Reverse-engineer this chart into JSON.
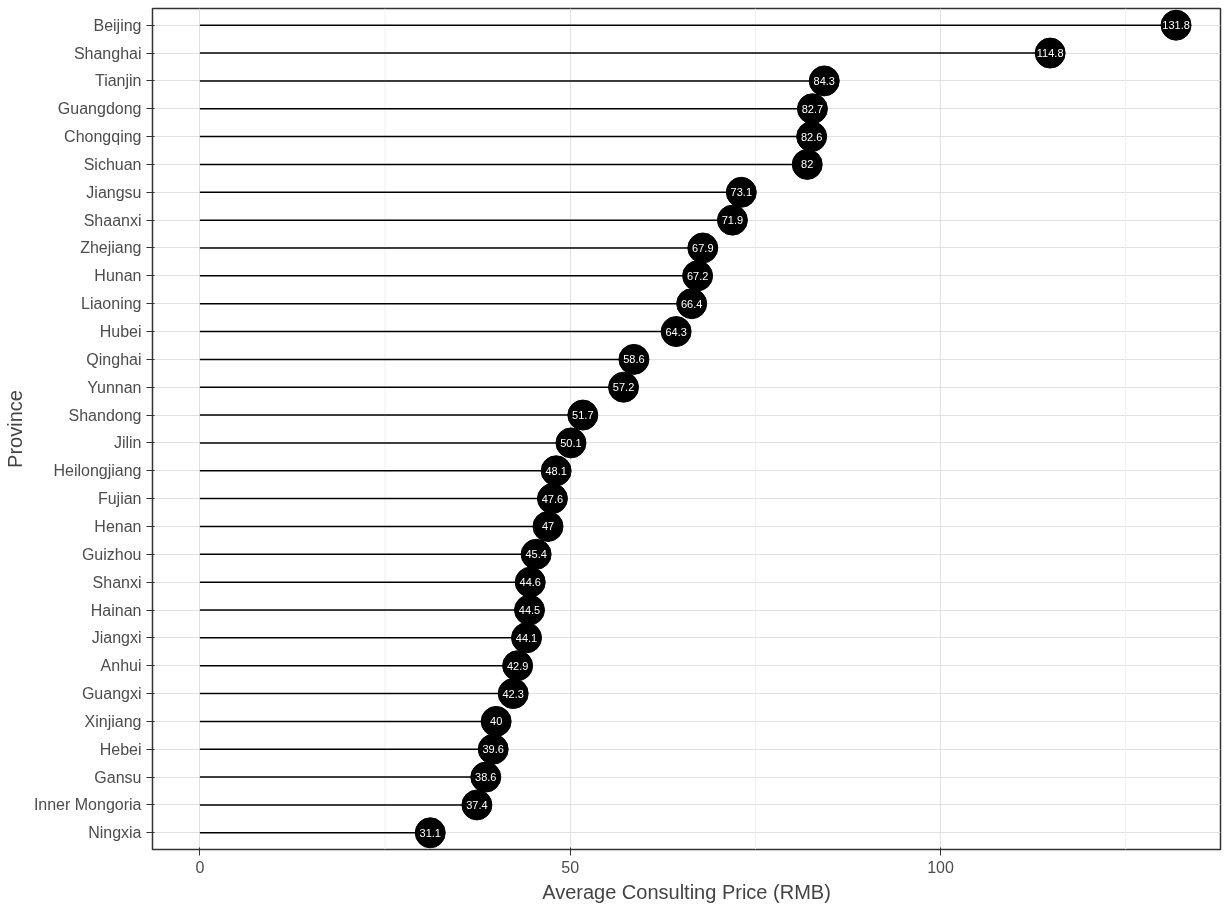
{
  "chart_data": {
    "type": "lollipop",
    "xlabel": "Average Consulting Price (RMB)",
    "ylabel": "Province",
    "categories": [
      "Beijing",
      "Shanghai",
      "Tianjin",
      "Guangdong",
      "Chongqing",
      "Sichuan",
      "Jiangsu",
      "Shaanxi",
      "Zhejiang",
      "Hunan",
      "Liaoning",
      "Hubei",
      "Qinghai",
      "Yunnan",
      "Shandong",
      "Jilin",
      "Heilongjiang",
      "Fujian",
      "Henan",
      "Guizhou",
      "Shanxi",
      "Hainan",
      "Jiangxi",
      "Anhui",
      "Guangxi",
      "Xinjiang",
      "Hebei",
      "Gansu",
      "Inner Mongoria",
      "Ningxia"
    ],
    "orientation": "horizontal",
    "values": [
      131.8,
      114.8,
      84.3,
      82.7,
      82.6,
      82,
      73.1,
      71.9,
      67.9,
      67.2,
      66.4,
      64.3,
      58.6,
      57.2,
      51.7,
      50.1,
      48.1,
      47.6,
      47,
      45.4,
      44.6,
      44.5,
      44.1,
      42.9,
      42.3,
      40,
      39.6,
      38.6,
      37.4,
      31.1
    ],
    "color": "#000000",
    "data_labels": true,
    "grid": true,
    "xlim": [
      -6.4,
      137.8
    ],
    "xticks": [
      0,
      50,
      100
    ]
  }
}
